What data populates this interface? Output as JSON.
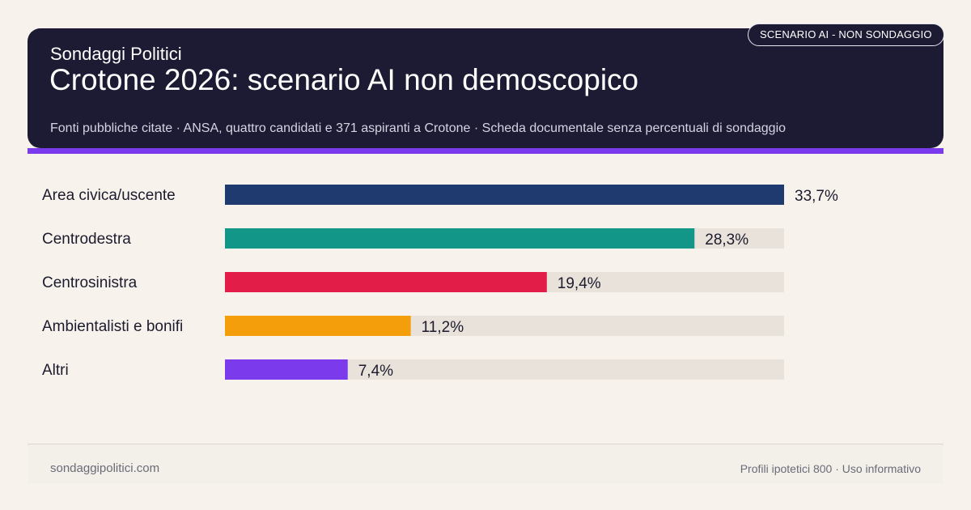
{
  "header": {
    "badge": "SCENARIO AI - NON SONDAGGIO",
    "brand": "Sondaggi Politici",
    "title": "Crotone 2026: scenario AI non demoscopico",
    "subtitle": "Fonti pubbliche citate · ANSA, quattro candidati e 371 aspiranti a Crotone · Scheda documentale senza percentuali di sondaggio"
  },
  "colors": {
    "header_bg": "#1c1b33",
    "accent": "#7c3aed",
    "track": "#e8e2da"
  },
  "chart_data": {
    "type": "bar",
    "orientation": "horizontal",
    "categories": [
      "Area civica/uscente",
      "Centrodestra",
      "Centrosinistra",
      "Ambientalisti e bonifi",
      "Altri"
    ],
    "values": [
      33.7,
      28.3,
      19.4,
      11.2,
      7.4
    ],
    "value_labels": [
      "33,7%",
      "28,3%",
      "19,4%",
      "11,2%",
      "7,4%"
    ],
    "colors": [
      "#1e3a6e",
      "#129688",
      "#e11d48",
      "#f59e0b",
      "#7c3aed"
    ],
    "xlim": [
      0,
      33.7
    ],
    "grid": false,
    "legend": "none"
  },
  "footer": {
    "left": "sondaggipolitici.com",
    "right": "Profili ipotetici 800 · Uso informativo"
  }
}
